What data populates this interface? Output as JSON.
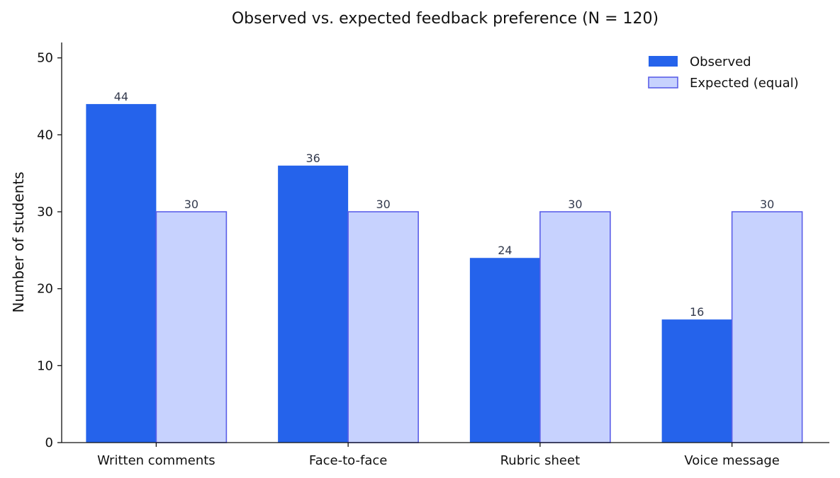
{
  "chart_data": {
    "type": "bar",
    "title": "Observed vs. expected feedback preference (N = 120)",
    "xlabel": "",
    "ylabel": "Number of students",
    "categories": [
      "Written comments",
      "Face-to-face",
      "Rubric sheet",
      "Voice message"
    ],
    "series": [
      {
        "name": "Observed",
        "values": [
          44,
          36,
          24,
          16
        ],
        "color": "#2563eb",
        "border": "#2563eb"
      },
      {
        "name": "Expected (equal)",
        "values": [
          30,
          30,
          30,
          30
        ],
        "color": "#c7d2fe",
        "border": "#5b5fe8"
      }
    ],
    "ylim": [
      0,
      52
    ],
    "yticks": [
      0,
      10,
      20,
      30,
      40,
      50
    ],
    "grid": false,
    "legend_position": "top-right"
  }
}
